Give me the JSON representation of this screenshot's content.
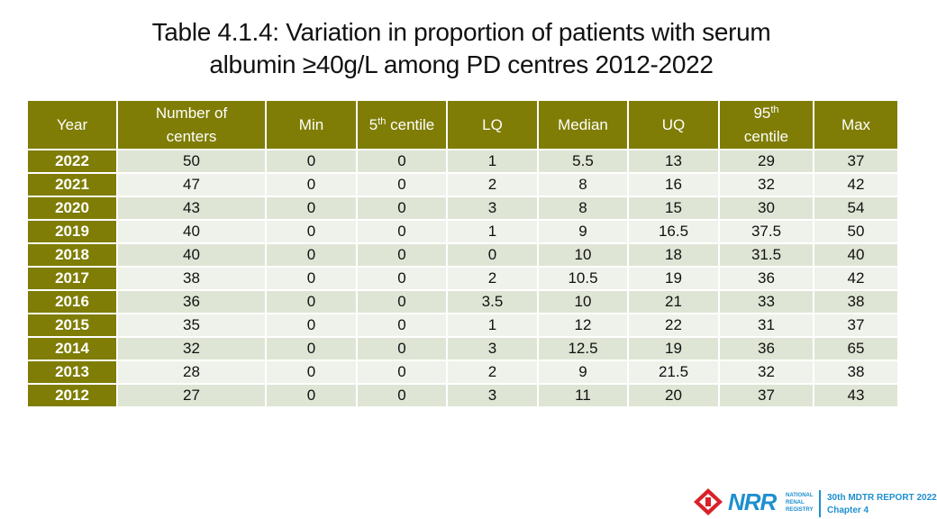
{
  "title": {
    "line1": "Table 4.1.4: Variation in proportion of patients with serum",
    "line2": "albumin ≥40g/L among PD centres 2012-2022"
  },
  "table": {
    "headers": {
      "year": "Year",
      "centers_a": "Number of",
      "centers_b": "centers",
      "min": "Min",
      "c5_num": "5",
      "c5_sup": "th",
      "c5_text": " centile",
      "lq": "LQ",
      "median": "Median",
      "uq": "UQ",
      "c95_num": "95",
      "c95_sup": "th",
      "c95_text": "centile",
      "max": "Max"
    },
    "rows": [
      [
        "2022",
        "50",
        "0",
        "0",
        "1",
        "5.5",
        "13",
        "29",
        "37"
      ],
      [
        "2021",
        "47",
        "0",
        "0",
        "2",
        "8",
        "16",
        "32",
        "42"
      ],
      [
        "2020",
        "43",
        "0",
        "0",
        "3",
        "8",
        "15",
        "30",
        "54"
      ],
      [
        "2019",
        "40",
        "0",
        "0",
        "1",
        "9",
        "16.5",
        "37.5",
        "50"
      ],
      [
        "2018",
        "40",
        "0",
        "0",
        "0",
        "10",
        "18",
        "31.5",
        "40"
      ],
      [
        "2017",
        "38",
        "0",
        "0",
        "2",
        "10.5",
        "19",
        "36",
        "42"
      ],
      [
        "2016",
        "36",
        "0",
        "0",
        "3.5",
        "10",
        "21",
        "33",
        "38"
      ],
      [
        "2015",
        "35",
        "0",
        "0",
        "1",
        "12",
        "22",
        "31",
        "37"
      ],
      [
        "2014",
        "32",
        "0",
        "0",
        "3",
        "12.5",
        "19",
        "36",
        "65"
      ],
      [
        "2013",
        "28",
        "0",
        "0",
        "2",
        "9",
        "21.5",
        "32",
        "38"
      ],
      [
        "2012",
        "27",
        "0",
        "0",
        "3",
        "11",
        "20",
        "37",
        "43"
      ]
    ]
  },
  "footer": {
    "logo_text": "NRR",
    "registry_line1": "NATIONAL",
    "registry_line2": "RENAL",
    "registry_line3": "REGISTRY",
    "report_title": "30th MDTR REPORT 2022",
    "chapter": "Chapter 4"
  },
  "colors": {
    "header_bg": "#7f7d05",
    "row_odd": "#dfe5d5",
    "row_even": "#eff2ea",
    "brand_blue": "#1e8fd0",
    "logo_red": "#d8232a"
  }
}
